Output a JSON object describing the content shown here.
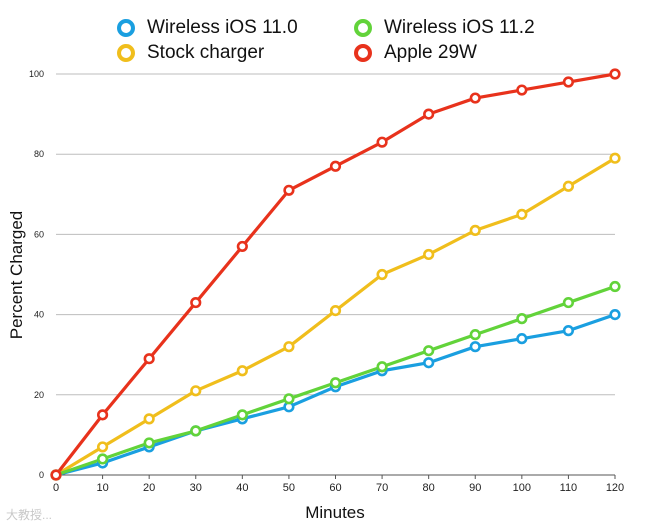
{
  "chart_data": {
    "type": "line",
    "title": "",
    "xlabel": "Minutes",
    "ylabel": "Percent Charged",
    "x": [
      0,
      10,
      20,
      30,
      40,
      50,
      60,
      70,
      80,
      90,
      100,
      110,
      120
    ],
    "xticks": [
      "0",
      "10",
      "20",
      "30",
      "40",
      "50",
      "60",
      "70",
      "80",
      "90",
      "100",
      "110",
      "120"
    ],
    "yticks": [
      "0",
      "20",
      "40",
      "60",
      "80",
      "100"
    ],
    "xlim": [
      0,
      120
    ],
    "ylim": [
      0,
      100
    ],
    "grid": "horizontal",
    "legend_position": "top",
    "series": [
      {
        "name": "Wireless iOS 11.0",
        "color": "#1a9fe0",
        "values": [
          0,
          3,
          7,
          11,
          14,
          17,
          22,
          26,
          28,
          32,
          34,
          36,
          40
        ]
      },
      {
        "name": "Stock charger",
        "color": "#f0be1c",
        "values": [
          0,
          7,
          14,
          21,
          26,
          32,
          41,
          50,
          55,
          61,
          65,
          72,
          79
        ]
      },
      {
        "name": "Wireless iOS 11.2",
        "color": "#62d33a",
        "values": [
          0,
          4,
          8,
          11,
          15,
          19,
          23,
          27,
          31,
          35,
          39,
          43,
          47
        ]
      },
      {
        "name": "Apple 29W",
        "color": "#e8321c",
        "values": [
          0,
          15,
          29,
          43,
          57,
          71,
          77,
          83,
          90,
          94,
          96,
          98,
          100
        ]
      }
    ]
  },
  "watermark": "大教授..."
}
